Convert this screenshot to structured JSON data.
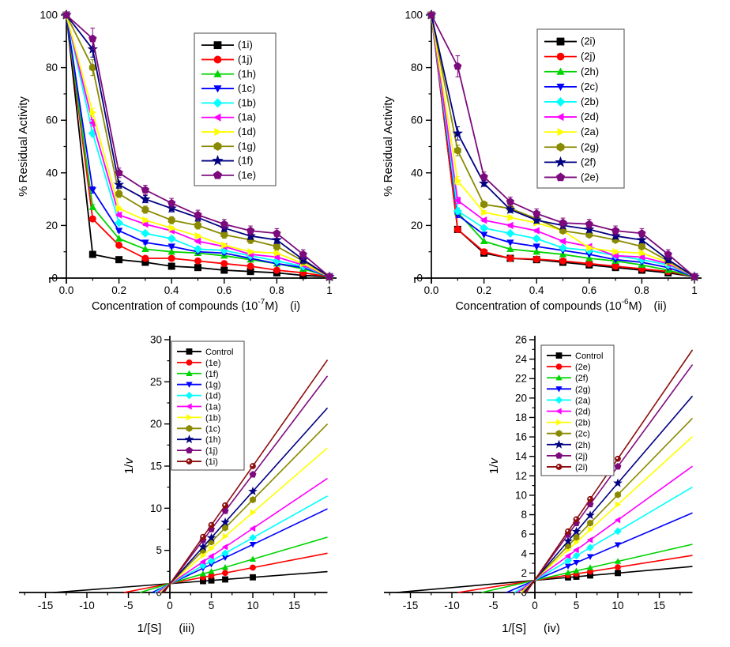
{
  "page": {
    "background": "#ffffff"
  },
  "chart_data": [
    {
      "id": "i",
      "kind": "dose",
      "type": "line",
      "tag": "(i)",
      "xlabel": {
        "prefix": "Concentration of compounds (10",
        "sup": "-7",
        "suffix": "M)"
      },
      "ylabel": {
        "text": "% Residual Activity"
      },
      "xlim": [
        0,
        1
      ],
      "ylim": [
        0,
        100
      ],
      "x_ticks": [
        {
          "v": 0,
          "l": "0.0"
        },
        {
          "v": 0.2,
          "l": "0.2"
        },
        {
          "v": 0.4,
          "l": "0.4"
        },
        {
          "v": 0.6,
          "l": "0.6"
        },
        {
          "v": 0.8,
          "l": "0.8"
        },
        {
          "v": 1,
          "l": "1"
        }
      ],
      "x_minor": [
        0.1,
        0.3,
        0.5,
        0.7,
        0.9
      ],
      "y_ticks": [
        {
          "v": 0,
          "l": "0"
        },
        {
          "v": 20,
          "l": "20"
        },
        {
          "v": 40,
          "l": "40"
        },
        {
          "v": 60,
          "l": "60"
        },
        {
          "v": 80,
          "l": "80"
        },
        {
          "v": 100,
          "l": "100"
        }
      ],
      "y_minor": [
        10,
        30,
        50,
        70,
        90
      ],
      "x": [
        0,
        0.1,
        0.2,
        0.3,
        0.4,
        0.5,
        0.6,
        0.7,
        0.8,
        0.9,
        1
      ],
      "series": [
        {
          "name": "(1i)",
          "color": "#000000",
          "marker": "square",
          "yerr": 0.8,
          "values": [
            100,
            9,
            7,
            6,
            4.5,
            4,
            3,
            2.5,
            2,
            1,
            0.5
          ]
        },
        {
          "name": "(1j)",
          "color": "#FF0000",
          "marker": "circle",
          "yerr": 1,
          "values": [
            100,
            22.5,
            12.5,
            7.5,
            7.5,
            6.5,
            5.5,
            4.5,
            3,
            2,
            0.5
          ]
        },
        {
          "name": "(1h)",
          "color": "#00D400",
          "marker": "triangle-up",
          "yerr": 1,
          "values": [
            100,
            27,
            15,
            11,
            10,
            9.5,
            8.5,
            7,
            5.5,
            3.5,
            0.5
          ]
        },
        {
          "name": "(1c)",
          "color": "#0000FF",
          "marker": "triangle-down",
          "yerr": 1.2,
          "values": [
            100,
            33.5,
            18,
            13.5,
            12,
            10,
            9.5,
            7.5,
            5.5,
            4,
            0.5
          ]
        },
        {
          "name": "(1b)",
          "color": "#00FFFF",
          "marker": "diamond",
          "yerr": 1.2,
          "values": [
            100,
            55,
            21,
            17,
            15,
            11,
            10.5,
            8.5,
            6.5,
            4.5,
            0.5
          ]
        },
        {
          "name": "(1a)",
          "color": "#FF00FF",
          "marker": "triangle-left",
          "yerr": 1.2,
          "values": [
            100,
            59,
            24,
            20.5,
            18,
            14,
            12,
            9,
            8,
            5,
            0.5
          ]
        },
        {
          "name": "(1d)",
          "color": "#FFFF00",
          "marker": "triangle-right",
          "yerr": 1.5,
          "values": [
            100,
            63,
            26.5,
            22,
            19,
            16,
            12.5,
            10,
            9.5,
            5.5,
            0.5
          ]
        },
        {
          "name": "(1g)",
          "color": "#8A8A00",
          "marker": "hexagon",
          "yerr": 3,
          "values": [
            100,
            80,
            32,
            26,
            22,
            20,
            16.5,
            14.5,
            12,
            6.5,
            0.5
          ]
        },
        {
          "name": "(1f)",
          "color": "#000080",
          "marker": "star",
          "yerr": 3,
          "values": [
            100,
            87,
            35.5,
            30,
            26.5,
            23,
            19,
            16,
            14.5,
            7,
            0.5
          ]
        },
        {
          "name": "(1e)",
          "color": "#7D0A7D",
          "marker": "pentagon",
          "yerr": 4,
          "values": [
            100,
            91,
            40,
            33.5,
            28.5,
            24,
            20.5,
            18,
            17,
            9,
            0.5
          ]
        }
      ]
    },
    {
      "id": "ii",
      "kind": "dose",
      "type": "line",
      "tag": "(ii)",
      "xlabel": {
        "prefix": "Concentration of compounds (10",
        "sup": "-6",
        "suffix": "M)"
      },
      "ylabel": {
        "text": "% Residual Activity"
      },
      "xlim": [
        0,
        1
      ],
      "ylim": [
        0,
        100
      ],
      "x_ticks": [
        {
          "v": 0,
          "l": "0.0"
        },
        {
          "v": 0.2,
          "l": "0.2"
        },
        {
          "v": 0.4,
          "l": "0.4"
        },
        {
          "v": 0.6,
          "l": "0.6"
        },
        {
          "v": 0.8,
          "l": "0.8"
        },
        {
          "v": 1,
          "l": "1"
        }
      ],
      "x_minor": [
        0.1,
        0.3,
        0.5,
        0.7,
        0.9
      ],
      "y_ticks": [
        {
          "v": 0,
          "l": "0"
        },
        {
          "v": 20,
          "l": "20"
        },
        {
          "v": 40,
          "l": "40"
        },
        {
          "v": 60,
          "l": "60"
        },
        {
          "v": 80,
          "l": "80"
        },
        {
          "v": 100,
          "l": "100"
        }
      ],
      "y_minor": [
        10,
        30,
        50,
        70,
        90
      ],
      "x": [
        0,
        0.1,
        0.2,
        0.3,
        0.4,
        0.5,
        0.6,
        0.7,
        0.8,
        0.9,
        1
      ],
      "series": [
        {
          "name": "(2i)",
          "color": "#000000",
          "marker": "square",
          "yerr": 0.8,
          "values": [
            100,
            18.5,
            9.5,
            7.5,
            7,
            6,
            5,
            4,
            3,
            2,
            0.5
          ]
        },
        {
          "name": "(2j)",
          "color": "#FF0000",
          "marker": "circle",
          "yerr": 0.8,
          "values": [
            100,
            18.5,
            10,
            7.5,
            7.2,
            6.5,
            5.5,
            4.5,
            3.5,
            2.5,
            0.5
          ]
        },
        {
          "name": "(2h)",
          "color": "#00D400",
          "marker": "triangle-up",
          "yerr": 1,
          "values": [
            100,
            25,
            14,
            11,
            10,
            9,
            7.5,
            6.5,
            5,
            3,
            0.5
          ]
        },
        {
          "name": "(2c)",
          "color": "#0000FF",
          "marker": "triangle-down",
          "yerr": 1,
          "values": [
            100,
            24,
            16.5,
            13.5,
            12,
            10.5,
            9,
            7,
            6,
            4,
            0.5
          ]
        },
        {
          "name": "(2b)",
          "color": "#00FFFF",
          "marker": "diamond",
          "yerr": 1.2,
          "values": [
            100,
            25.5,
            19,
            17,
            15,
            11.5,
            10.5,
            8.5,
            7,
            5,
            0.5
          ]
        },
        {
          "name": "(2d)",
          "color": "#FF00FF",
          "marker": "triangle-left",
          "yerr": 1.2,
          "values": [
            100,
            29.5,
            22,
            20,
            18,
            14,
            12,
            8.5,
            8,
            5.5,
            0.5
          ]
        },
        {
          "name": "(2a)",
          "color": "#FFFF00",
          "marker": "triangle-right",
          "yerr": 1.5,
          "values": [
            100,
            37,
            25,
            23,
            21,
            18,
            11.5,
            10,
            9.5,
            6,
            0.5
          ]
        },
        {
          "name": "(2g)",
          "color": "#8A8A00",
          "marker": "hexagon",
          "yerr": 2,
          "values": [
            100,
            48.5,
            28,
            26.5,
            22.5,
            18,
            16.5,
            14.5,
            12,
            6.5,
            0.5
          ]
        },
        {
          "name": "(2f)",
          "color": "#000080",
          "marker": "star",
          "yerr": 2.5,
          "values": [
            100,
            55,
            36,
            26,
            22,
            20,
            18.5,
            16,
            14.5,
            7,
            0.5
          ]
        },
        {
          "name": "(2e)",
          "color": "#7D0A7D",
          "marker": "pentagon",
          "yerr": 4,
          "values": [
            100,
            80.5,
            38.5,
            29,
            24.5,
            21,
            20.5,
            18,
            17,
            9,
            0.5
          ]
        }
      ]
    },
    {
      "id": "iii",
      "kind": "lb",
      "type": "line",
      "tag": "(iii)",
      "xlabel": {
        "prefix": "1/[S]"
      },
      "ylabel": {
        "prefix": "1/",
        "italic": "v"
      },
      "xlim": [
        -18.2,
        19
      ],
      "ylim": [
        0,
        30
      ],
      "x_ticks": [
        {
          "v": -15,
          "l": "-15"
        },
        {
          "v": -10,
          "l": "-10"
        },
        {
          "v": -5,
          "l": "-5"
        },
        {
          "v": 0,
          "l": "0"
        },
        {
          "v": 5,
          "l": "5"
        },
        {
          "v": 10,
          "l": "10"
        },
        {
          "v": 15,
          "l": "15"
        }
      ],
      "x_minor": [
        -17.5,
        -12.5,
        -7.5,
        -2.5,
        2.5,
        7.5,
        12.5,
        17.5
      ],
      "y_ticks": [
        {
          "v": 0,
          "l": "0"
        },
        {
          "v": 5,
          "l": "5"
        },
        {
          "v": 10,
          "l": "10"
        },
        {
          "v": 15,
          "l": "15"
        },
        {
          "v": 20,
          "l": "20"
        },
        {
          "v": 25,
          "l": "25"
        },
        {
          "v": 30,
          "l": "30"
        }
      ],
      "y_minor": [
        2.5,
        7.5,
        12.5,
        17.5,
        22.5,
        27.5
      ],
      "marker_x": [
        4,
        5,
        6.67,
        10
      ],
      "series": [
        {
          "name": "Control",
          "color": "#000000",
          "marker": "square",
          "slope": 0.075,
          "intercept": 1.05
        },
        {
          "name": "(1e)",
          "color": "#FF0000",
          "marker": "circle",
          "slope": 0.19,
          "intercept": 1.05
        },
        {
          "name": "(1f)",
          "color": "#00D400",
          "marker": "triangle-up",
          "slope": 0.29,
          "intercept": 1.05
        },
        {
          "name": "(1g)",
          "color": "#0000FF",
          "marker": "triangle-down",
          "slope": 0.47,
          "intercept": 1.0
        },
        {
          "name": "(1d)",
          "color": "#00FFFF",
          "marker": "diamond",
          "slope": 0.55,
          "intercept": 1.0
        },
        {
          "name": "(1a)",
          "color": "#FF00FF",
          "marker": "triangle-left",
          "slope": 0.66,
          "intercept": 1.0
        },
        {
          "name": "(1b)",
          "color": "#FFFF00",
          "marker": "triangle-right",
          "slope": 0.85,
          "intercept": 1.0
        },
        {
          "name": "(1c)",
          "color": "#8A8A00",
          "marker": "hexagon",
          "slope": 1.0,
          "intercept": 1.0
        },
        {
          "name": "(1h)",
          "color": "#000080",
          "marker": "star",
          "slope": 1.1,
          "intercept": 1.0
        },
        {
          "name": "(1j)",
          "color": "#7D0A7D",
          "marker": "pentagon",
          "slope": 1.3,
          "intercept": 1.0
        },
        {
          "name": "(1i)",
          "color": "#8E0E0E",
          "marker": "sphere",
          "slope": 1.4,
          "intercept": 1.0
        }
      ]
    },
    {
      "id": "iv",
      "kind": "lb",
      "type": "line",
      "tag": "(iv)",
      "xlabel": {
        "prefix": "1/[S]"
      },
      "ylabel": {
        "prefix": "1/",
        "italic": "v"
      },
      "xlim": [
        -18.2,
        19
      ],
      "ylim": [
        0,
        26
      ],
      "x_ticks": [
        {
          "v": -15,
          "l": "-15"
        },
        {
          "v": -10,
          "l": "-10"
        },
        {
          "v": -5,
          "l": "-5"
        },
        {
          "v": 0,
          "l": "0"
        },
        {
          "v": 5,
          "l": "5"
        },
        {
          "v": 10,
          "l": "10"
        },
        {
          "v": 15,
          "l": "15"
        }
      ],
      "x_minor": [
        -17.5,
        -12.5,
        -7.5,
        -2.5,
        2.5,
        7.5,
        12.5,
        17.5
      ],
      "y_ticks": [
        {
          "v": 0,
          "l": "0"
        },
        {
          "v": 2,
          "l": "2"
        },
        {
          "v": 4,
          "l": "4"
        },
        {
          "v": 6,
          "l": "6"
        },
        {
          "v": 8,
          "l": "8"
        },
        {
          "v": 10,
          "l": "10"
        },
        {
          "v": 12,
          "l": "12"
        },
        {
          "v": 14,
          "l": "14"
        },
        {
          "v": 16,
          "l": "16"
        },
        {
          "v": 18,
          "l": "18"
        },
        {
          "v": 20,
          "l": "20"
        },
        {
          "v": 22,
          "l": "22"
        },
        {
          "v": 24,
          "l": "24"
        },
        {
          "v": 26,
          "l": "26"
        }
      ],
      "y_minor": [
        1,
        3,
        5,
        7,
        9,
        11,
        13,
        15,
        17,
        19,
        21,
        23,
        25
      ],
      "marker_x": [
        4,
        5,
        6.67,
        10
      ],
      "series": [
        {
          "name": "Control",
          "color": "#000000",
          "marker": "square",
          "slope": 0.075,
          "intercept": 1.25
        },
        {
          "name": "(2e)",
          "color": "#FF0000",
          "marker": "circle",
          "slope": 0.135,
          "intercept": 1.25
        },
        {
          "name": "(2f)",
          "color": "#00D400",
          "marker": "triangle-up",
          "slope": 0.195,
          "intercept": 1.25
        },
        {
          "name": "(2g)",
          "color": "#0000FF",
          "marker": "triangle-down",
          "slope": 0.365,
          "intercept": 1.25
        },
        {
          "name": "(2a)",
          "color": "#00FFFF",
          "marker": "diamond",
          "slope": 0.505,
          "intercept": 1.25
        },
        {
          "name": "(2d)",
          "color": "#FF00FF",
          "marker": "triangle-left",
          "slope": 0.615,
          "intercept": 1.3
        },
        {
          "name": "(2b)",
          "color": "#FFFF00",
          "marker": "triangle-right",
          "slope": 0.775,
          "intercept": 1.3
        },
        {
          "name": "(2c)",
          "color": "#8A8A00",
          "marker": "hexagon",
          "slope": 0.875,
          "intercept": 1.3
        },
        {
          "name": "(2h)",
          "color": "#000080",
          "marker": "star",
          "slope": 0.995,
          "intercept": 1.3
        },
        {
          "name": "(2j)",
          "color": "#7D0A7D",
          "marker": "pentagon",
          "slope": 1.165,
          "intercept": 1.3
        },
        {
          "name": "(2i)",
          "color": "#8E0E0E",
          "marker": "sphere",
          "slope": 1.245,
          "intercept": 1.3
        }
      ]
    }
  ]
}
